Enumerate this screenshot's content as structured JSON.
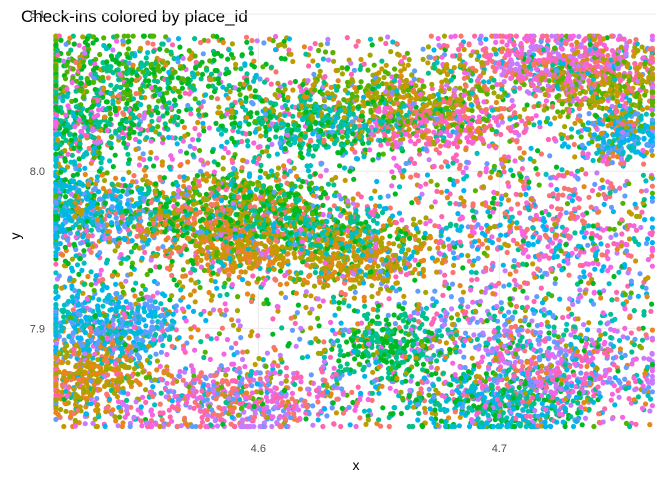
{
  "chart_data": {
    "type": "scatter",
    "title": "Check-ins colored by place_id",
    "xlabel": "x",
    "ylabel": "y",
    "xlim": [
      4.5144,
      4.765
    ],
    "ylim": [
      7.834,
      8.088
    ],
    "x_ticks": [
      4.6,
      4.7
    ],
    "y_ticks": [
      7.9,
      8.0,
      8.1
    ],
    "grid": true,
    "legend": "none",
    "marker": "filled-circle",
    "palette": [
      "#f8766d",
      "#e7861b",
      "#c49a00",
      "#a3a500",
      "#53b400",
      "#00b81f",
      "#00c08b",
      "#00bfc4",
      "#00b4f0",
      "#619cff",
      "#c77cff",
      "#f564e3",
      "#ff64b0"
    ],
    "clusters": [
      {
        "x": 4.545,
        "y": 8.06,
        "sx": 0.03,
        "sy": 0.014,
        "n": 500,
        "colors": [
          5,
          4,
          6
        ]
      },
      {
        "x": 4.535,
        "y": 8.03,
        "sx": 0.018,
        "sy": 0.01,
        "n": 260,
        "colors": [
          6,
          5,
          11
        ]
      },
      {
        "x": 4.53,
        "y": 7.972,
        "sx": 0.016,
        "sy": 0.012,
        "n": 300,
        "colors": [
          8,
          7,
          9
        ]
      },
      {
        "x": 4.575,
        "y": 7.972,
        "sx": 0.022,
        "sy": 0.014,
        "n": 560,
        "colors": [
          1,
          0,
          3,
          5
        ]
      },
      {
        "x": 4.592,
        "y": 7.95,
        "sx": 0.01,
        "sy": 0.008,
        "n": 220,
        "colors": [
          1,
          2
        ]
      },
      {
        "x": 4.602,
        "y": 7.978,
        "sx": 0.016,
        "sy": 0.012,
        "n": 320,
        "colors": [
          5,
          4,
          6
        ]
      },
      {
        "x": 4.538,
        "y": 7.902,
        "sx": 0.015,
        "sy": 0.012,
        "n": 460,
        "colors": [
          8,
          7,
          9
        ]
      },
      {
        "x": 4.53,
        "y": 7.868,
        "sx": 0.013,
        "sy": 0.013,
        "n": 340,
        "colors": [
          2,
          1,
          3
        ]
      },
      {
        "x": 4.59,
        "y": 7.855,
        "sx": 0.028,
        "sy": 0.012,
        "n": 520,
        "colors": [
          0,
          11,
          12,
          9,
          10
        ]
      },
      {
        "x": 4.64,
        "y": 7.945,
        "sx": 0.018,
        "sy": 0.011,
        "n": 420,
        "colors": [
          3,
          2,
          1
        ]
      },
      {
        "x": 4.628,
        "y": 7.962,
        "sx": 0.014,
        "sy": 0.008,
        "n": 200,
        "colors": [
          6,
          7,
          5
        ]
      },
      {
        "x": 4.625,
        "y": 8.03,
        "sx": 0.022,
        "sy": 0.01,
        "n": 400,
        "colors": [
          6,
          7,
          5
        ]
      },
      {
        "x": 4.66,
        "y": 8.045,
        "sx": 0.025,
        "sy": 0.013,
        "n": 440,
        "colors": [
          3,
          2,
          4
        ]
      },
      {
        "x": 4.652,
        "y": 7.888,
        "sx": 0.012,
        "sy": 0.01,
        "n": 240,
        "colors": [
          6,
          5
        ]
      },
      {
        "x": 4.7,
        "y": 7.852,
        "sx": 0.02,
        "sy": 0.011,
        "n": 420,
        "colors": [
          7,
          8,
          6,
          5
        ]
      },
      {
        "x": 4.725,
        "y": 8.07,
        "sx": 0.02,
        "sy": 0.01,
        "n": 500,
        "colors": [
          12,
          11,
          0,
          10
        ]
      },
      {
        "x": 4.745,
        "y": 8.052,
        "sx": 0.014,
        "sy": 0.014,
        "n": 320,
        "colors": [
          3,
          2,
          4
        ]
      },
      {
        "x": 4.752,
        "y": 8.023,
        "sx": 0.008,
        "sy": 0.009,
        "n": 220,
        "colors": [
          8,
          7,
          9
        ]
      },
      {
        "x": 4.725,
        "y": 7.872,
        "sx": 0.02,
        "sy": 0.012,
        "n": 340,
        "colors": [
          10,
          11,
          12,
          9
        ]
      },
      {
        "x": 4.68,
        "y": 8.03,
        "sx": 0.018,
        "sy": 0.01,
        "n": 260,
        "colors": [
          0,
          11,
          12
        ]
      },
      {
        "x": 4.72,
        "y": 7.96,
        "sx": 0.028,
        "sy": 0.02,
        "n": 320,
        "colors": [
          12,
          0,
          8,
          11
        ]
      },
      {
        "x": 4.7,
        "y": 7.9,
        "sx": 0.03,
        "sy": 0.015,
        "n": 260,
        "colors": [
          9,
          10,
          6
        ]
      },
      {
        "x": 4.52,
        "y": 7.99,
        "sx": 0.008,
        "sy": 0.03,
        "n": 200,
        "colors": [
          7,
          8,
          5
        ]
      }
    ],
    "background_points": 2600
  }
}
